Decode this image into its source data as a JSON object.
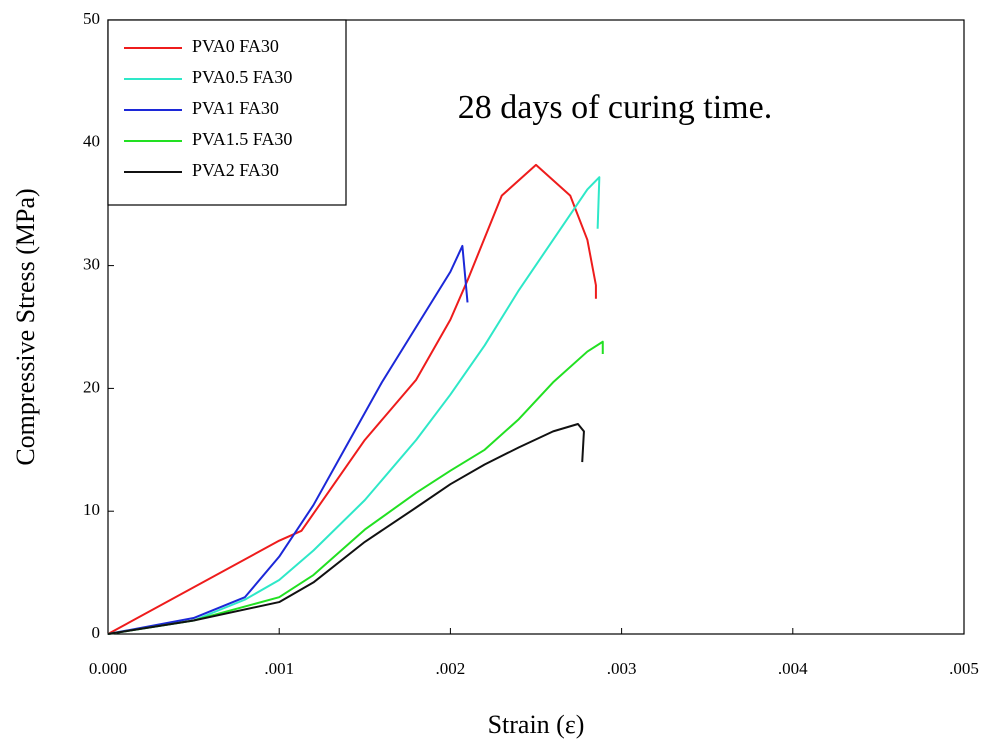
{
  "chart_data": {
    "type": "line",
    "annotation": "28 days of curing time.",
    "x_label": "Strain (ε)",
    "y_label": "Compressive Stress (MPa)",
    "xlim": [
      0,
      0.005
    ],
    "xticks": [
      {
        "value": 0,
        "label": "0.000"
      },
      {
        "value": 0.001,
        "label": ".001"
      },
      {
        "value": 0.002,
        "label": ".002"
      },
      {
        "value": 0.003,
        "label": ".003"
      },
      {
        "value": 0.004,
        "label": ".004"
      },
      {
        "value": 0.005,
        "label": ".005"
      }
    ],
    "ylim": [
      0,
      50
    ],
    "yticks": [
      0,
      10,
      20,
      30,
      40,
      50
    ],
    "legend": "upper-left",
    "series": [
      {
        "name": "PVA0 FA30",
        "color": "#ee1c1c",
        "x": [
          0,
          0.001,
          0.00113,
          0.0015,
          0.0018,
          0.002,
          0.0021,
          0.0023,
          0.0025,
          0.0027,
          0.0028,
          0.00285,
          0.00285
        ],
        "values": [
          0,
          7.6,
          8.4,
          15.8,
          20.7,
          25.6,
          28.8,
          35.7,
          38.2,
          35.7,
          32.1,
          28.4,
          27.3
        ]
      },
      {
        "name": "PVA0.5 FA30",
        "color": "#2ee8c8",
        "x": [
          0,
          0.0005,
          0.0008,
          0.001,
          0.0012,
          0.0015,
          0.0018,
          0.002,
          0.0022,
          0.0024,
          0.0026,
          0.0028,
          0.00287,
          0.00286
        ],
        "values": [
          0,
          1.1,
          2.8,
          4.4,
          6.8,
          10.9,
          15.8,
          19.5,
          23.5,
          28,
          32.1,
          36.2,
          37.2,
          33
        ]
      },
      {
        "name": "PVA1 FA30",
        "color": "#1c28d8",
        "x": [
          0,
          0.0005,
          0.0008,
          0.001,
          0.0012,
          0.0014,
          0.0016,
          0.0018,
          0.002,
          0.00207,
          0.0021
        ],
        "values": [
          0,
          1.3,
          3,
          6.3,
          10.5,
          15.5,
          20.5,
          25,
          29.5,
          31.6,
          27
        ]
      },
      {
        "name": "PVA1.5 FA30",
        "color": "#22e022",
        "x": [
          0,
          0.0005,
          0.001,
          0.0012,
          0.0015,
          0.0018,
          0.002,
          0.0022,
          0.0024,
          0.0026,
          0.0028,
          0.00289,
          0.00289
        ],
        "values": [
          0,
          1.1,
          3,
          4.8,
          8.5,
          11.5,
          13.3,
          15,
          17.5,
          20.5,
          23,
          23.8,
          22.8
        ]
      },
      {
        "name": "PVA2 FA30",
        "color": "#111111",
        "x": [
          0,
          0.0005,
          0.001,
          0.0012,
          0.0015,
          0.0018,
          0.002,
          0.0022,
          0.0024,
          0.0026,
          0.002745,
          0.00278,
          0.00277
        ],
        "values": [
          0,
          1.1,
          2.6,
          4.2,
          7.5,
          10.3,
          12.2,
          13.8,
          15.2,
          16.5,
          17.1,
          16.5,
          14
        ]
      }
    ]
  }
}
